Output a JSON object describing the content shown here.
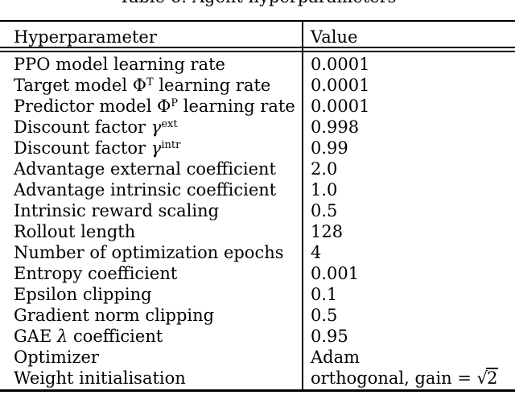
{
  "caption": "Table 6: Agent hyperparameters",
  "colors": {
    "text": "#000000",
    "background": "#ffffff",
    "rule": "#000000"
  },
  "table": {
    "header": {
      "col1": "Hyperparameter",
      "col2": "Value"
    },
    "rows": [
      {
        "label": [
          {
            "t": "PPO model learning rate"
          }
        ],
        "value": [
          {
            "t": "0.0001"
          }
        ]
      },
      {
        "label": [
          {
            "t": "Target model "
          },
          {
            "t": "Φ"
          },
          {
            "t": "T",
            "s": "sup"
          },
          {
            "t": " learning rate"
          }
        ],
        "value": [
          {
            "t": "0.0001"
          }
        ]
      },
      {
        "label": [
          {
            "t": "Predictor model "
          },
          {
            "t": "Φ"
          },
          {
            "t": "P",
            "s": "sup"
          },
          {
            "t": " learning rate"
          }
        ],
        "value": [
          {
            "t": "0.0001"
          }
        ]
      },
      {
        "label": [
          {
            "t": "Discount factor "
          },
          {
            "t": "γ",
            "s": "i"
          },
          {
            "t": "ext",
            "s": "sup"
          }
        ],
        "value": [
          {
            "t": "0.998"
          }
        ]
      },
      {
        "label": [
          {
            "t": "Discount factor "
          },
          {
            "t": "γ",
            "s": "i"
          },
          {
            "t": "intr",
            "s": "sup"
          }
        ],
        "value": [
          {
            "t": "0.99"
          }
        ]
      },
      {
        "label": [
          {
            "t": "Advantage external coefficient"
          }
        ],
        "value": [
          {
            "t": "2.0"
          }
        ]
      },
      {
        "label": [
          {
            "t": "Advantage intrinsic coefficient"
          }
        ],
        "value": [
          {
            "t": "1.0"
          }
        ]
      },
      {
        "label": [
          {
            "t": "Intrinsic reward scaling"
          }
        ],
        "value": [
          {
            "t": "0.5"
          }
        ]
      },
      {
        "label": [
          {
            "t": "Rollout length"
          }
        ],
        "value": [
          {
            "t": "128"
          }
        ]
      },
      {
        "label": [
          {
            "t": "Number of optimization epochs"
          }
        ],
        "value": [
          {
            "t": "4"
          }
        ]
      },
      {
        "label": [
          {
            "t": "Entropy coefficient"
          }
        ],
        "value": [
          {
            "t": "0.001"
          }
        ]
      },
      {
        "label": [
          {
            "t": "Epsilon clipping"
          }
        ],
        "value": [
          {
            "t": "0.1"
          }
        ]
      },
      {
        "label": [
          {
            "t": "Gradient norm clipping"
          }
        ],
        "value": [
          {
            "t": "0.5"
          }
        ]
      },
      {
        "label": [
          {
            "t": "GAE "
          },
          {
            "t": "λ",
            "s": "i"
          },
          {
            "t": " coefficient"
          }
        ],
        "value": [
          {
            "t": "0.95"
          }
        ]
      },
      {
        "label": [
          {
            "t": "Optimizer"
          }
        ],
        "value": [
          {
            "t": "Adam"
          }
        ]
      },
      {
        "label": [
          {
            "t": "Weight initialisation"
          }
        ],
        "value": [
          {
            "t": "orthogonal, gain = "
          },
          {
            "t": "2",
            "s": "sqrt"
          }
        ]
      }
    ]
  }
}
